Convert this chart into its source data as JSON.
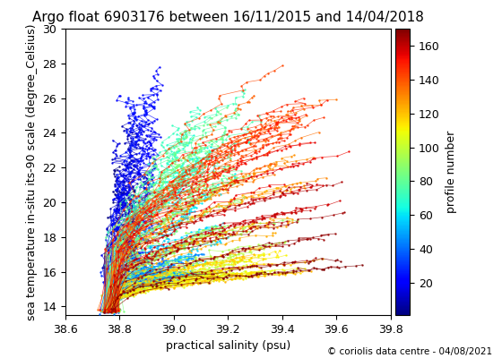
{
  "title": "Argo float 6903176 between 16/11/2015 and 14/04/2018",
  "xlabel": "practical salinity (psu)",
  "ylabel": "sea temperature in-situ its-90 scale (degree_Celsius)",
  "colorbar_label": "profile number",
  "copyright": "© coriolis data centre - 04/08/2021",
  "xlim": [
    38.6,
    39.8
  ],
  "ylim": [
    13.5,
    30
  ],
  "xticks": [
    38.6,
    38.8,
    39.0,
    39.2,
    39.4,
    39.6,
    39.8
  ],
  "yticks": [
    14,
    16,
    18,
    20,
    22,
    24,
    26,
    28,
    30
  ],
  "cmap": "jet",
  "n_profiles": 170,
  "colorbar_ticks": [
    20,
    40,
    60,
    80,
    100,
    120,
    140,
    160
  ],
  "title_fontsize": 11,
  "label_fontsize": 9,
  "tick_fontsize": 9,
  "cbar_tick_fontsize": 9
}
